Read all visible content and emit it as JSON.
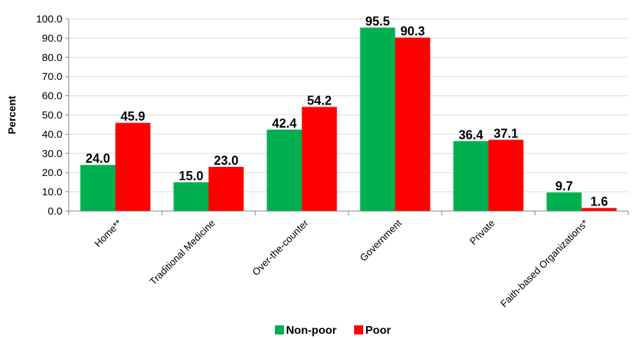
{
  "chart_data": {
    "type": "bar",
    "title": "",
    "xlabel": "",
    "ylabel": "Percent",
    "ylim": [
      0,
      100
    ],
    "yticks": [
      "0.0",
      "10.0",
      "20.0",
      "30.0",
      "40.0",
      "50.0",
      "60.0",
      "70.0",
      "80.0",
      "90.0",
      "100.0"
    ],
    "categories": [
      "Home**",
      "Traditional Medicine",
      "Over-the-counter",
      "Government",
      "Private",
      "Faith-based Organizations*"
    ],
    "series": [
      {
        "name": "Non-poor",
        "color": "#00b050",
        "values": [
          24.0,
          15.0,
          42.4,
          95.5,
          36.4,
          9.7
        ],
        "labels": [
          "24.0",
          "15.0",
          "42.4",
          "95.5",
          "36.4",
          "9.7"
        ]
      },
      {
        "name": "Poor",
        "color": "#ff0000",
        "values": [
          45.9,
          23.0,
          54.2,
          90.3,
          37.1,
          1.6
        ],
        "labels": [
          "45.9",
          "23.0",
          "54.2",
          "90.3",
          "37.1",
          "1.6"
        ]
      }
    ],
    "legend_position": "bottom",
    "grid": true
  }
}
